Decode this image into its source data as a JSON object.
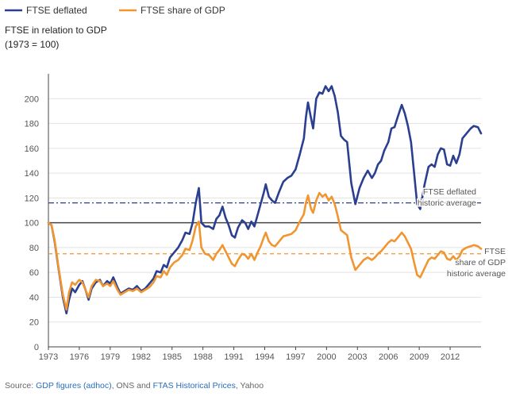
{
  "chart_data": {
    "type": "line",
    "title": "FTSE in relation to GDP",
    "subtitle": "(1973 = 100)",
    "xlabel": "",
    "ylabel": "",
    "x_ticks": [
      "1973",
      "1976",
      "1979",
      "1982",
      "1985",
      "1988",
      "1991",
      "1994",
      "1997",
      "2000",
      "2003",
      "2006",
      "2009",
      "2012"
    ],
    "xlim": [
      1973,
      2015
    ],
    "ylim": [
      0,
      220
    ],
    "y_ticks": [
      0,
      20,
      40,
      60,
      80,
      100,
      120,
      140,
      160,
      180,
      200
    ],
    "grid": "horizontal",
    "legend_position": "top-left",
    "reference_line": {
      "value": 100
    },
    "series": [
      {
        "name": "FTSE deflated",
        "color": "#2a3f8f",
        "points": [
          [
            1973.0,
            100
          ],
          [
            1973.3,
            98
          ],
          [
            1973.6,
            85
          ],
          [
            1974.0,
            62
          ],
          [
            1974.4,
            40
          ],
          [
            1974.75,
            27
          ],
          [
            1975.0,
            38
          ],
          [
            1975.3,
            47
          ],
          [
            1975.6,
            44
          ],
          [
            1976.0,
            50
          ],
          [
            1976.3,
            53
          ],
          [
            1976.6,
            46
          ],
          [
            1976.9,
            38
          ],
          [
            1977.2,
            47
          ],
          [
            1977.6,
            52
          ],
          [
            1978.0,
            54
          ],
          [
            1978.3,
            49
          ],
          [
            1978.7,
            53
          ],
          [
            1979.0,
            51
          ],
          [
            1979.3,
            56
          ],
          [
            1979.7,
            48
          ],
          [
            1980.0,
            43
          ],
          [
            1980.4,
            45
          ],
          [
            1980.8,
            47
          ],
          [
            1981.2,
            46
          ],
          [
            1981.6,
            49
          ],
          [
            1982.0,
            45
          ],
          [
            1982.4,
            47
          ],
          [
            1982.8,
            51
          ],
          [
            1983.2,
            55
          ],
          [
            1983.5,
            61
          ],
          [
            1983.9,
            60
          ],
          [
            1984.2,
            66
          ],
          [
            1984.5,
            64
          ],
          [
            1984.8,
            72
          ],
          [
            1985.2,
            76
          ],
          [
            1985.6,
            80
          ],
          [
            1986.0,
            86
          ],
          [
            1986.3,
            92
          ],
          [
            1986.7,
            91
          ],
          [
            1987.0,
            100
          ],
          [
            1987.3,
            116
          ],
          [
            1987.6,
            128
          ],
          [
            1987.85,
            100
          ],
          [
            1988.2,
            97
          ],
          [
            1988.6,
            97
          ],
          [
            1989.0,
            95
          ],
          [
            1989.3,
            103
          ],
          [
            1989.6,
            106
          ],
          [
            1989.9,
            113
          ],
          [
            1990.2,
            104
          ],
          [
            1990.5,
            98
          ],
          [
            1990.8,
            90
          ],
          [
            1991.1,
            88
          ],
          [
            1991.4,
            96
          ],
          [
            1991.8,
            102
          ],
          [
            1992.1,
            100
          ],
          [
            1992.4,
            95
          ],
          [
            1992.7,
            101
          ],
          [
            1993.0,
            97
          ],
          [
            1993.3,
            106
          ],
          [
            1993.6,
            115
          ],
          [
            1993.9,
            124
          ],
          [
            1994.1,
            131
          ],
          [
            1994.4,
            121
          ],
          [
            1994.7,
            118
          ],
          [
            1995.0,
            116
          ],
          [
            1995.4,
            125
          ],
          [
            1995.8,
            133
          ],
          [
            1996.2,
            136
          ],
          [
            1996.6,
            138
          ],
          [
            1997.0,
            143
          ],
          [
            1997.4,
            155
          ],
          [
            1997.8,
            168
          ],
          [
            1998.0,
            185
          ],
          [
            1998.2,
            197
          ],
          [
            1998.5,
            184
          ],
          [
            1998.7,
            176
          ],
          [
            1999.0,
            200
          ],
          [
            1999.3,
            205
          ],
          [
            1999.6,
            204
          ],
          [
            1999.9,
            210
          ],
          [
            2000.2,
            206
          ],
          [
            2000.5,
            210
          ],
          [
            2000.8,
            202
          ],
          [
            2001.1,
            189
          ],
          [
            2001.4,
            170
          ],
          [
            2001.7,
            167
          ],
          [
            2002.0,
            165
          ],
          [
            2002.4,
            132
          ],
          [
            2002.8,
            115
          ],
          [
            2003.2,
            128
          ],
          [
            2003.6,
            136
          ],
          [
            2004.0,
            142
          ],
          [
            2004.4,
            136
          ],
          [
            2004.7,
            140
          ],
          [
            2005.0,
            147
          ],
          [
            2005.3,
            150
          ],
          [
            2005.6,
            158
          ],
          [
            2006.0,
            165
          ],
          [
            2006.3,
            176
          ],
          [
            2006.6,
            177
          ],
          [
            2006.9,
            185
          ],
          [
            2007.3,
            195
          ],
          [
            2007.6,
            188
          ],
          [
            2007.9,
            178
          ],
          [
            2008.2,
            165
          ],
          [
            2008.5,
            140
          ],
          [
            2008.8,
            115
          ],
          [
            2009.1,
            111
          ],
          [
            2009.5,
            130
          ],
          [
            2009.9,
            145
          ],
          [
            2010.2,
            147
          ],
          [
            2010.5,
            145
          ],
          [
            2010.8,
            155
          ],
          [
            2011.1,
            160
          ],
          [
            2011.4,
            159
          ],
          [
            2011.7,
            147
          ],
          [
            2012.0,
            146
          ],
          [
            2012.3,
            154
          ],
          [
            2012.6,
            148
          ],
          [
            2012.9,
            155
          ],
          [
            2013.2,
            168
          ],
          [
            2013.6,
            172
          ],
          [
            2014.0,
            176
          ],
          [
            2014.3,
            178
          ],
          [
            2014.7,
            177
          ],
          [
            2015.0,
            172
          ]
        ]
      },
      {
        "name": "FTSE share of GDP",
        "color": "#f0952f",
        "points": [
          [
            1973.0,
            100
          ],
          [
            1973.3,
            98
          ],
          [
            1973.6,
            86
          ],
          [
            1974.0,
            63
          ],
          [
            1974.4,
            42
          ],
          [
            1974.75,
            30
          ],
          [
            1975.0,
            44
          ],
          [
            1975.3,
            52
          ],
          [
            1975.6,
            50
          ],
          [
            1976.0,
            54
          ],
          [
            1976.3,
            52
          ],
          [
            1976.6,
            46
          ],
          [
            1976.9,
            40
          ],
          [
            1977.2,
            49
          ],
          [
            1977.6,
            54
          ],
          [
            1978.0,
            53
          ],
          [
            1978.3,
            49
          ],
          [
            1978.7,
            51
          ],
          [
            1979.0,
            49
          ],
          [
            1979.3,
            53
          ],
          [
            1979.7,
            46
          ],
          [
            1980.0,
            42
          ],
          [
            1980.4,
            44
          ],
          [
            1980.8,
            46
          ],
          [
            1981.2,
            45
          ],
          [
            1981.6,
            47
          ],
          [
            1982.0,
            44
          ],
          [
            1982.4,
            46
          ],
          [
            1982.8,
            48
          ],
          [
            1983.2,
            52
          ],
          [
            1983.5,
            57
          ],
          [
            1983.9,
            56
          ],
          [
            1984.2,
            61
          ],
          [
            1984.5,
            58
          ],
          [
            1984.8,
            64
          ],
          [
            1985.2,
            68
          ],
          [
            1985.6,
            70
          ],
          [
            1986.0,
            74
          ],
          [
            1986.3,
            79
          ],
          [
            1986.7,
            78
          ],
          [
            1987.0,
            86
          ],
          [
            1987.3,
            97
          ],
          [
            1987.6,
            101
          ],
          [
            1987.85,
            80
          ],
          [
            1988.2,
            75
          ],
          [
            1988.6,
            74
          ],
          [
            1989.0,
            70
          ],
          [
            1989.3,
            75
          ],
          [
            1989.6,
            78
          ],
          [
            1989.9,
            82
          ],
          [
            1990.2,
            77
          ],
          [
            1990.5,
            72
          ],
          [
            1990.8,
            67
          ],
          [
            1991.1,
            65
          ],
          [
            1991.4,
            70
          ],
          [
            1991.8,
            75
          ],
          [
            1992.1,
            74
          ],
          [
            1992.4,
            71
          ],
          [
            1992.7,
            75
          ],
          [
            1993.0,
            70
          ],
          [
            1993.3,
            76
          ],
          [
            1993.6,
            81
          ],
          [
            1993.9,
            88
          ],
          [
            1994.1,
            92
          ],
          [
            1994.4,
            85
          ],
          [
            1994.7,
            82
          ],
          [
            1995.0,
            81
          ],
          [
            1995.4,
            85
          ],
          [
            1995.8,
            89
          ],
          [
            1996.2,
            90
          ],
          [
            1996.6,
            91
          ],
          [
            1997.0,
            94
          ],
          [
            1997.4,
            101
          ],
          [
            1997.8,
            107
          ],
          [
            1998.0,
            116
          ],
          [
            1998.2,
            122
          ],
          [
            1998.5,
            111
          ],
          [
            1998.7,
            108
          ],
          [
            1999.0,
            118
          ],
          [
            1999.3,
            124
          ],
          [
            1999.6,
            121
          ],
          [
            1999.9,
            123
          ],
          [
            2000.2,
            118
          ],
          [
            2000.5,
            121
          ],
          [
            2000.8,
            115
          ],
          [
            2001.1,
            105
          ],
          [
            2001.4,
            94
          ],
          [
            2001.7,
            92
          ],
          [
            2002.0,
            90
          ],
          [
            2002.4,
            72
          ],
          [
            2002.8,
            62
          ],
          [
            2003.2,
            66
          ],
          [
            2003.6,
            70
          ],
          [
            2004.0,
            72
          ],
          [
            2004.4,
            70
          ],
          [
            2004.7,
            72
          ],
          [
            2005.0,
            75
          ],
          [
            2005.3,
            77
          ],
          [
            2005.6,
            80
          ],
          [
            2006.0,
            84
          ],
          [
            2006.3,
            86
          ],
          [
            2006.6,
            85
          ],
          [
            2006.9,
            88
          ],
          [
            2007.3,
            92
          ],
          [
            2007.6,
            89
          ],
          [
            2007.9,
            84
          ],
          [
            2008.2,
            79
          ],
          [
            2008.5,
            68
          ],
          [
            2008.8,
            58
          ],
          [
            2009.1,
            56
          ],
          [
            2009.5,
            63
          ],
          [
            2009.9,
            70
          ],
          [
            2010.2,
            72
          ],
          [
            2010.5,
            71
          ],
          [
            2010.8,
            74
          ],
          [
            2011.1,
            77
          ],
          [
            2011.4,
            76
          ],
          [
            2011.7,
            71
          ],
          [
            2012.0,
            70
          ],
          [
            2012.3,
            73
          ],
          [
            2012.6,
            70
          ],
          [
            2012.9,
            73
          ],
          [
            2013.2,
            78
          ],
          [
            2013.6,
            80
          ],
          [
            2014.0,
            81
          ],
          [
            2014.3,
            82
          ],
          [
            2014.7,
            81
          ],
          [
            2015.0,
            79
          ]
        ]
      }
    ],
    "annotations": [
      {
        "series": "FTSE deflated",
        "value": 116,
        "color": "#2a3f8f",
        "style": "dash-dot",
        "lines": [
          "FTSE deflated",
          "historic average"
        ]
      },
      {
        "series": "FTSE share of GDP",
        "value": 75,
        "color": "#f0952f",
        "style": "dashed",
        "lines": [
          "FTSE",
          "share of GDP",
          "historic average"
        ]
      }
    ]
  },
  "source": {
    "prefix": "Source: ",
    "link1": "GDP figures (adhoc)",
    "middle": ", ONS and ",
    "link2": "FTAS Historical Prices",
    "suffix": ", Yahoo"
  }
}
